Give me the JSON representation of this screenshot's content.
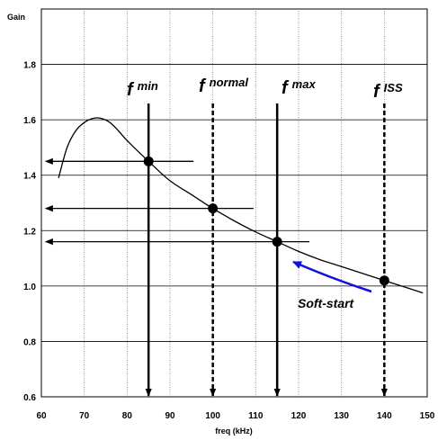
{
  "chart_data": {
    "type": "line",
    "title": "",
    "xlabel": "freq (kHz)",
    "ylabel": "Gain",
    "xlim": [
      60,
      150
    ],
    "ylim": [
      0.6,
      2.0
    ],
    "x_ticks": [
      60,
      70,
      80,
      90,
      100,
      110,
      120,
      130,
      140,
      150
    ],
    "y_ticks": [
      0.6,
      0.8,
      1.0,
      1.2,
      1.4,
      1.6,
      1.8
    ],
    "y_tick_labels": [
      "0.6",
      "0.8",
      "1.0",
      "1.2",
      "1.4",
      "1.6",
      "1.8"
    ],
    "grid": true,
    "curve": {
      "x": [
        64,
        66,
        68,
        70,
        72,
        74,
        76,
        78,
        80,
        85,
        90,
        95,
        100,
        105,
        110,
        115,
        120,
        125,
        130,
        135,
        140,
        145,
        149
      ],
      "y": [
        1.39,
        1.5,
        1.56,
        1.59,
        1.605,
        1.605,
        1.59,
        1.56,
        1.525,
        1.45,
        1.38,
        1.33,
        1.28,
        1.235,
        1.195,
        1.16,
        1.125,
        1.095,
        1.07,
        1.045,
        1.02,
        0.995,
        0.975
      ]
    },
    "markers": [
      {
        "main": "f",
        "sup": "min",
        "x": 85,
        "y": 1.45,
        "style": "solid",
        "arrow_to_x": 61,
        "line_right_x": 95.5
      },
      {
        "main": "f",
        "sup": "normal",
        "x": 100,
        "y": 1.28,
        "style": "dashed",
        "arrow_to_x": 61,
        "line_right_x": 109.5
      },
      {
        "main": "f",
        "sup": "max",
        "x": 115,
        "y": 1.16,
        "style": "solid",
        "arrow_to_x": 61,
        "line_right_x": 122.5
      },
      {
        "main": "f",
        "sup": "ISS",
        "x": 140,
        "y": 1.02,
        "style": "dashed"
      }
    ],
    "annotations": [
      {
        "text": "Soft-start",
        "color": "#1010e0"
      }
    ]
  }
}
